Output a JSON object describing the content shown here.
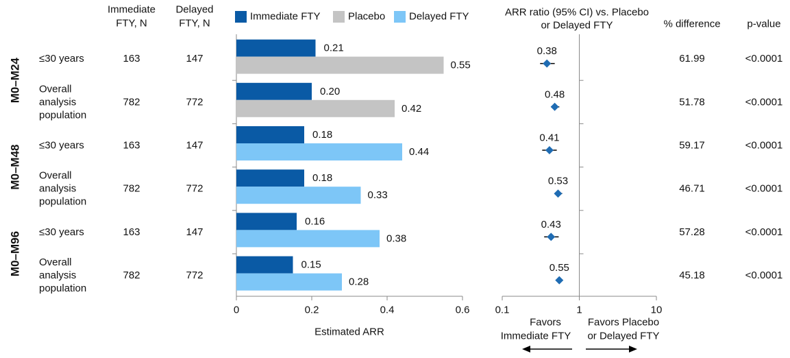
{
  "headers": {
    "immediate_n": [
      "Immediate",
      "FTY, N"
    ],
    "delayed_n": [
      "Delayed",
      "FTY, N"
    ],
    "arr_ratio": [
      "ARR ratio (95% CI) vs. Placebo",
      "or Delayed FTY"
    ],
    "pct_diff": "% difference",
    "p_value": "p-value"
  },
  "periods": [
    "M0–M24",
    "M0–M48",
    "M0–M96"
  ],
  "rows": [
    {
      "period": "M0–M24",
      "label": [
        "≤30 years"
      ],
      "imm_n": "163",
      "del_n": "147",
      "imm_arr": 0.21,
      "cmp_arr": 0.55,
      "cmp": "Placebo",
      "ratio": 0.38,
      "ci": [
        0.31,
        0.48
      ],
      "pct": "61.99",
      "p": "<0.0001"
    },
    {
      "period": "M0–M24",
      "label": [
        "Overall",
        "analysis",
        "population"
      ],
      "imm_n": "782",
      "del_n": "772",
      "imm_arr": 0.2,
      "cmp_arr": 0.42,
      "cmp": "Placebo",
      "ratio": 0.48,
      "ci": [
        0.43,
        0.55
      ],
      "pct": "51.78",
      "p": "<0.0001"
    },
    {
      "period": "M0–M48",
      "label": [
        "≤30 years"
      ],
      "imm_n": "163",
      "del_n": "147",
      "imm_arr": 0.18,
      "cmp_arr": 0.44,
      "cmp": "Delayed FTY",
      "ratio": 0.41,
      "ci": [
        0.33,
        0.51
      ],
      "pct": "59.17",
      "p": "<0.0001"
    },
    {
      "period": "M0–M48",
      "label": [
        "Overall",
        "analysis",
        "population"
      ],
      "imm_n": "782",
      "del_n": "772",
      "imm_arr": 0.18,
      "cmp_arr": 0.33,
      "cmp": "Delayed FTY",
      "ratio": 0.53,
      "ci": [
        0.48,
        0.6
      ],
      "pct": "46.71",
      "p": "<0.0001"
    },
    {
      "period": "M0–M96",
      "label": [
        "≤30 years"
      ],
      "imm_n": "163",
      "del_n": "147",
      "imm_arr": 0.16,
      "cmp_arr": 0.38,
      "cmp": "Delayed FTY",
      "ratio": 0.43,
      "ci": [
        0.35,
        0.54
      ],
      "pct": "57.28",
      "p": "<0.0001"
    },
    {
      "period": "M0–M96",
      "label": [
        "Overall",
        "analysis",
        "population"
      ],
      "imm_n": "782",
      "del_n": "772",
      "imm_arr": 0.15,
      "cmp_arr": 0.28,
      "cmp": "Delayed FTY",
      "ratio": 0.55,
      "ci": [
        0.5,
        0.61
      ],
      "pct": "45.18",
      "p": "<0.0001"
    }
  ],
  "legend": [
    {
      "name": "Immediate FTY",
      "color": "#0a5aa5"
    },
    {
      "name": "Placebo",
      "color": "#c4c4c4"
    },
    {
      "name": "Delayed FTY",
      "color": "#7dc6f7"
    }
  ],
  "bar_axis": {
    "label": "Estimated ARR",
    "ticks": [
      0,
      0.2,
      0.4,
      0.6
    ],
    "tick_labels": [
      "0",
      "0.2",
      "0.4",
      "0.6"
    ],
    "range": [
      0,
      0.6
    ]
  },
  "forest_axis": {
    "scale": "log",
    "ticks": [
      0.1,
      1,
      10
    ],
    "tick_labels": [
      "0.1",
      "1",
      "10"
    ],
    "range": [
      0.1,
      10
    ]
  },
  "favors": {
    "left": [
      "Favors",
      "Immediate FTY"
    ],
    "right": [
      "Favors Placebo",
      "or Delayed FTY"
    ]
  },
  "colors": {
    "marker": "#1f6cb3",
    "text": "#111111"
  },
  "chart_data": [
    {
      "type": "bar",
      "orientation": "horizontal",
      "categories": [
        "M0–M24 ≤30 years",
        "M0–M24 Overall analysis population",
        "M0–M48 ≤30 years",
        "M0–M48 Overall analysis population",
        "M0–M96 ≤30 years",
        "M0–M96 Overall analysis population"
      ],
      "series": [
        {
          "name": "Immediate FTY",
          "values": [
            0.21,
            0.2,
            0.18,
            0.18,
            0.16,
            0.15
          ]
        },
        {
          "name": "Placebo",
          "values": [
            0.55,
            0.42,
            null,
            null,
            null,
            null
          ]
        },
        {
          "name": "Delayed FTY",
          "values": [
            null,
            null,
            0.44,
            0.33,
            0.38,
            0.28
          ]
        }
      ],
      "xlabel": "Estimated ARR",
      "xlim": [
        0,
        0.6
      ],
      "legend": "top",
      "grid": false
    },
    {
      "type": "scatter",
      "subtype": "forest",
      "categories": [
        "M0–M24 ≤30 years",
        "M0–M24 Overall analysis population",
        "M0–M48 ≤30 years",
        "M0–M48 Overall analysis population",
        "M0–M96 ≤30 years",
        "M0–M96 Overall analysis population"
      ],
      "values": [
        0.38,
        0.48,
        0.41,
        0.53,
        0.43,
        0.55
      ],
      "ci_low": [
        0.31,
        0.43,
        0.33,
        0.48,
        0.35,
        0.5
      ],
      "ci_high": [
        0.48,
        0.55,
        0.51,
        0.6,
        0.54,
        0.61
      ],
      "title": "ARR ratio (95% CI) vs. Placebo or Delayed FTY",
      "x_scale": "log",
      "xlim": [
        0.1,
        10
      ],
      "reference_line": 1
    }
  ]
}
